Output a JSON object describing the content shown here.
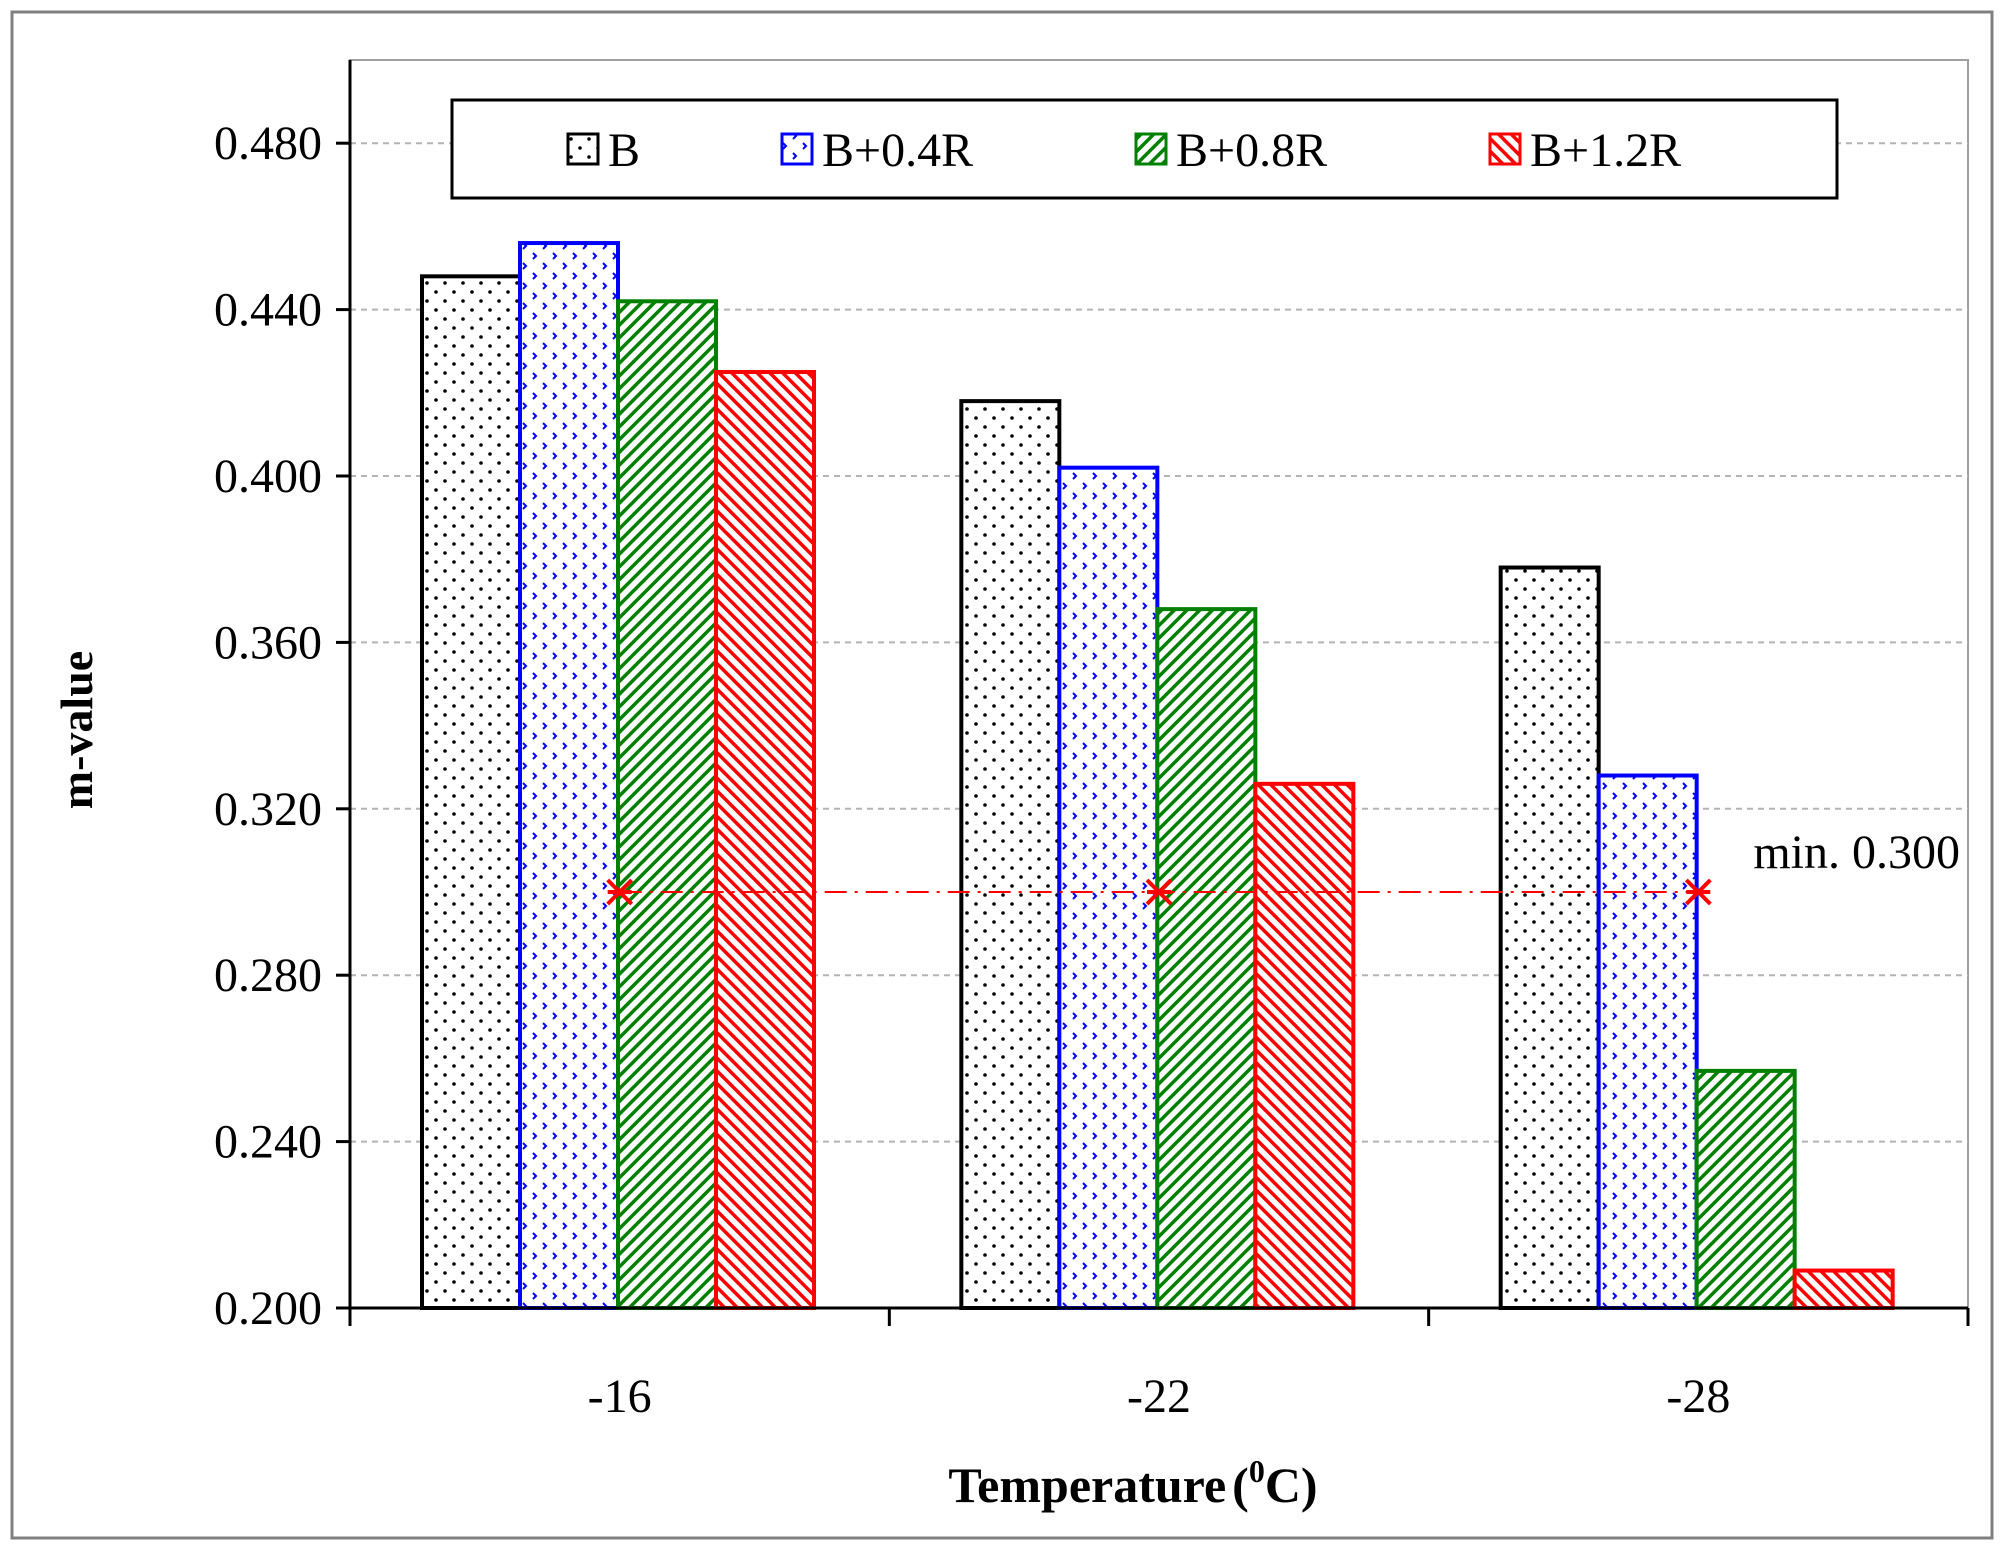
{
  "chart_data": {
    "type": "bar",
    "title": "",
    "xlabel": "Temperature (0C)",
    "xlabel_main": "Temperature",
    "xlabel_unit_open": "(",
    "xlabel_unit_sup": "0",
    "xlabel_unit_close": "C)",
    "ylabel": "m-value",
    "categories": [
      "-16",
      "-22",
      "-28"
    ],
    "ylim": [
      0.2,
      0.5
    ],
    "yticks": [
      0.2,
      0.24,
      0.28,
      0.32,
      0.36,
      0.4,
      0.44,
      0.48
    ],
    "ytick_labels": [
      "0.200",
      "0.240",
      "0.280",
      "0.320",
      "0.360",
      "0.400",
      "0.440",
      "0.480"
    ],
    "grid": true,
    "legend_position": "top",
    "series": [
      {
        "name": "B",
        "color": "#000000",
        "pattern": "dots",
        "values": [
          0.448,
          0.418,
          0.378
        ]
      },
      {
        "name": "B+0.4R",
        "color": "#0000ff",
        "pattern": "chevron-dots",
        "values": [
          0.456,
          0.402,
          0.328
        ]
      },
      {
        "name": "B+0.8R",
        "color": "#008000",
        "pattern": "forward-diagonal",
        "values": [
          0.442,
          0.368,
          0.257
        ]
      },
      {
        "name": "B+1.2R",
        "color": "#ff0000",
        "pattern": "backward-diagonal",
        "values": [
          0.425,
          0.326,
          0.209
        ]
      }
    ],
    "threshold": {
      "value": 0.3,
      "label": "min. 0.300",
      "color": "#ff0000",
      "marker": "asterisk"
    }
  }
}
